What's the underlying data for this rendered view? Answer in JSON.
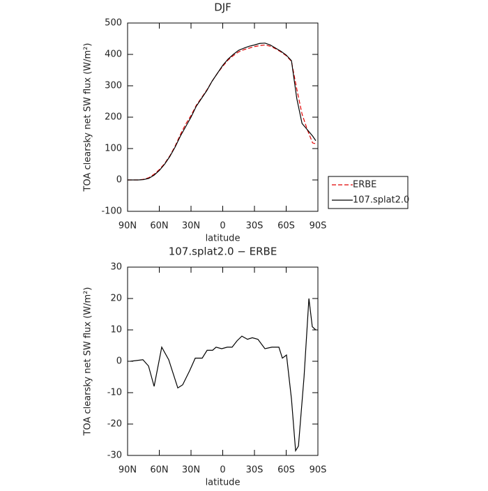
{
  "chart_data": [
    {
      "type": "line",
      "title": "DJF",
      "xlabel": "latitude",
      "ylabel": "TOA clearsky net SW flux (W/m²)",
      "xlim": [
        90,
        -90
      ],
      "xticks": [
        {
          "value": 90,
          "label": "90N"
        },
        {
          "value": 60,
          "label": "60N"
        },
        {
          "value": 30,
          "label": "30N"
        },
        0,
        {
          "value": -30,
          "label": "30S"
        },
        {
          "value": -60,
          "label": "60S"
        },
        {
          "value": -90,
          "label": "90S"
        }
      ],
      "ylim": [
        -100,
        500
      ],
      "yticks": [
        -100,
        0,
        100,
        200,
        300,
        400,
        500
      ],
      "legend": "right",
      "x": [
        90,
        85,
        80,
        75,
        70,
        65,
        60,
        55,
        50,
        45,
        40,
        35,
        30,
        25,
        20,
        15,
        10,
        5,
        0,
        -5,
        -10,
        -15,
        -20,
        -25,
        -30,
        -35,
        -40,
        -45,
        -50,
        -55,
        -60,
        -65,
        -70,
        -75,
        -80,
        -85,
        -88
      ],
      "series": [
        {
          "name": "ERBE",
          "color": "#e00000",
          "style": "dashed",
          "values": [
            0,
            0,
            0,
            2,
            7,
            18,
            33,
            52,
            77,
            108,
            145,
            178,
            205,
            238,
            262,
            287,
            315,
            340,
            362,
            382,
            396,
            408,
            415,
            420,
            425,
            428,
            430,
            426,
            418,
            408,
            396,
            378,
            290,
            210,
            160,
            118,
            115
          ]
        },
        {
          "name": "107.splat2.0",
          "color": "#000000",
          "style": "solid",
          "values": [
            0,
            0,
            0,
            1,
            5,
            15,
            30,
            50,
            75,
            105,
            140,
            170,
            200,
            235,
            260,
            285,
            315,
            340,
            365,
            385,
            400,
            413,
            420,
            426,
            430,
            435,
            436,
            430,
            420,
            410,
            398,
            380,
            260,
            180,
            160,
            140,
            125
          ]
        }
      ]
    },
    {
      "type": "line",
      "title": "107.splat2.0 − ERBE",
      "xlabel": "latitude",
      "ylabel": "TOA clearsky net SW flux (W/m²)",
      "xlim": [
        90,
        -90
      ],
      "xticks": [
        {
          "value": 90,
          "label": "90N"
        },
        {
          "value": 60,
          "label": "60N"
        },
        {
          "value": 30,
          "label": "30N"
        },
        0,
        {
          "value": -30,
          "label": "30S"
        },
        {
          "value": -60,
          "label": "60S"
        },
        {
          "value": -90,
          "label": "90S"
        }
      ],
      "ylim": [
        -30,
        30
      ],
      "yticks": [
        -30,
        -20,
        -10,
        0,
        10,
        20,
        30
      ],
      "x": [
        87.3,
        75.5,
        70.2,
        64.9,
        57.7,
        51.1,
        42.5,
        37.9,
        31.3,
        26.0,
        19.4,
        14.8,
        9.6,
        6.3,
        1.0,
        -4.3,
        -8.9,
        -13.5,
        -18.1,
        -23.4,
        -28.0,
        -33.3,
        -39.9,
        -46.5,
        -53.1,
        -56.4,
        -60.3,
        -65.0,
        -68.9,
        -71.6,
        -76.9,
        -81.5,
        -84.7,
        -88.0
      ],
      "series": [
        {
          "color": "#000000",
          "style": "solid",
          "values": [
            0,
            0.5,
            -1.5,
            -8,
            4.5,
            0.5,
            -8.5,
            -7.5,
            -3,
            1,
            1,
            3.5,
            3.5,
            4.5,
            4,
            4.5,
            4.5,
            6.5,
            8,
            7,
            7.5,
            7,
            4,
            4.5,
            4.5,
            1,
            2,
            -12,
            -28.5,
            -27,
            -5,
            20,
            11,
            10
          ]
        }
      ]
    }
  ]
}
